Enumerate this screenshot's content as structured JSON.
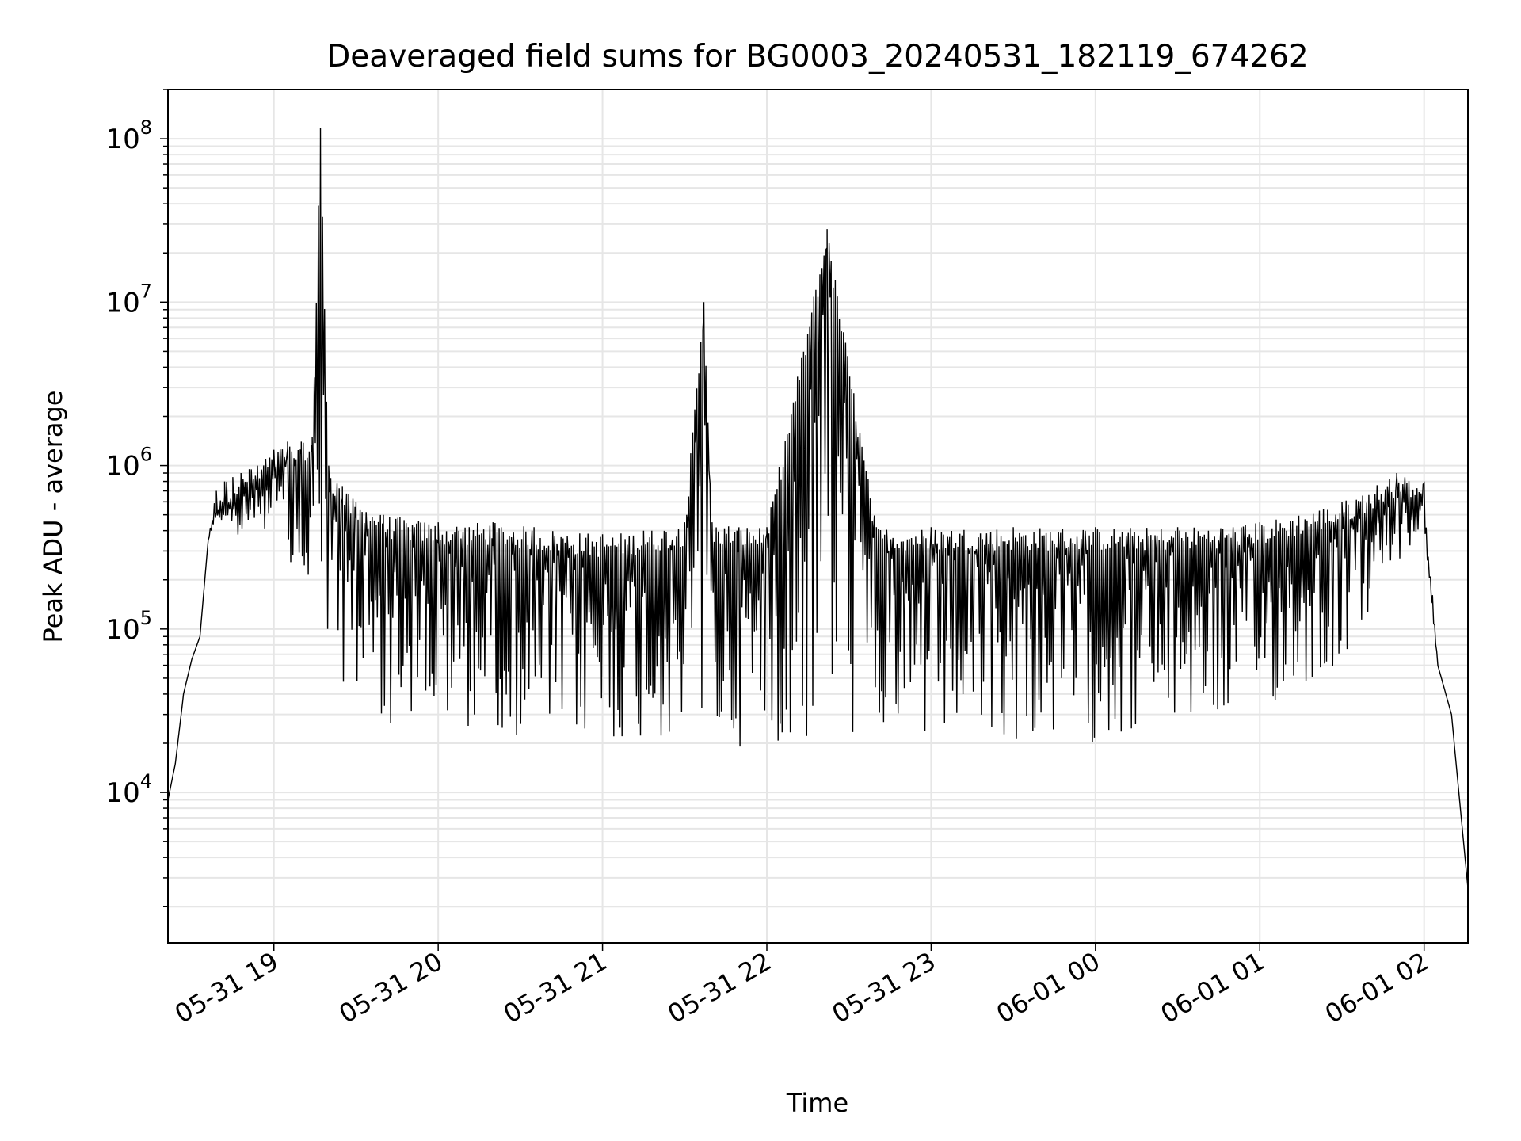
{
  "chart_data": {
    "type": "line",
    "title": "Deaveraged field sums for BG0003_20240531_182119_674262",
    "xlabel": "Time",
    "ylabel": "Peak ADU - average",
    "xscale": "time",
    "yscale": "log",
    "xlim": [
      "2024-05-31T18:21:19",
      "2024-06-01T02:16:00"
    ],
    "ylim": [
      1200,
      200000000
    ],
    "x_ticks": [
      {
        "label": "05-31 19",
        "value": "2024-05-31T19:00:00"
      },
      {
        "label": "05-31 20",
        "value": "2024-05-31T20:00:00"
      },
      {
        "label": "05-31 21",
        "value": "2024-05-31T21:00:00"
      },
      {
        "label": "05-31 22",
        "value": "2024-05-31T22:00:00"
      },
      {
        "label": "05-31 23",
        "value": "2024-05-31T23:00:00"
      },
      {
        "label": "06-01 00",
        "value": "2024-06-01T00:00:00"
      },
      {
        "label": "06-01 01",
        "value": "2024-06-01T01:00:00"
      },
      {
        "label": "06-01 02",
        "value": "2024-06-01T02:00:00"
      }
    ],
    "y_ticks": [
      {
        "base": "10",
        "exp": "4",
        "value": 10000
      },
      {
        "base": "10",
        "exp": "5",
        "value": 100000
      },
      {
        "base": "10",
        "exp": "6",
        "value": 1000000
      },
      {
        "base": "10",
        "exp": "7",
        "value": 10000000
      },
      {
        "base": "10",
        "exp": "8",
        "value": 100000000
      }
    ],
    "grid": true,
    "line_color": "#000000",
    "grid_color": "#e6e6e6",
    "series": [
      {
        "x": [
          "2024-05-31T18:21:19",
          "2024-05-31T18:24:00",
          "2024-05-31T18:27:00",
          "2024-05-31T18:30:00",
          "2024-05-31T18:33:00",
          "2024-05-31T18:36:00",
          "2024-05-31T18:39:00",
          "2024-05-31T18:42:00",
          "2024-05-31T18:45:00",
          "2024-05-31T18:48:00",
          "2024-05-31T18:51:00",
          "2024-05-31T18:54:00",
          "2024-05-31T18:57:00",
          "2024-05-31T19:00:00",
          "2024-05-31T19:05:00",
          "2024-05-31T19:10:00",
          "2024-05-31T19:14:00",
          "2024-05-31T19:17:00",
          "2024-05-31T19:20:00",
          "2024-05-31T19:25:00",
          "2024-05-31T19:30:00",
          "2024-05-31T19:40:00",
          "2024-05-31T20:00:00",
          "2024-05-31T20:20:00",
          "2024-05-31T20:35:00",
          "2024-05-31T21:00:00",
          "2024-05-31T21:15:00",
          "2024-05-31T21:30:00",
          "2024-05-31T21:37:00",
          "2024-05-31T21:40:00",
          "2024-05-31T22:00:00",
          "2024-05-31T22:22:00",
          "2024-05-31T22:40:00",
          "2024-05-31T23:00:00",
          "2024-05-31T23:30:00",
          "2024-06-01T00:00:00",
          "2024-06-01T00:30:00",
          "2024-06-01T01:00:00",
          "2024-06-01T01:30:00",
          "2024-06-01T01:50:00",
          "2024-06-01T02:00:00",
          "2024-06-01T02:05:00",
          "2024-06-01T02:10:00",
          "2024-06-01T02:16:00"
        ],
        "y": [
          9000,
          15000,
          40000,
          65000,
          90000,
          350000,
          700000,
          800000,
          850000,
          900000,
          950000,
          1000000,
          1100000,
          1250000,
          1400000,
          1400000,
          1500000,
          117000000,
          1000000,
          750000,
          600000,
          500000,
          450000,
          450000,
          420000,
          380000,
          400000,
          450000,
          10000000,
          450000,
          420000,
          28000000,
          420000,
          420000,
          420000,
          420000,
          420000,
          450000,
          600000,
          900000,
          800000,
          60000,
          30000,
          2600
        ],
        "y_low": [
          9000,
          15000,
          40000,
          65000,
          90000,
          350000,
          500000,
          400000,
          400000,
          300000,
          400000,
          500000,
          400000,
          400000,
          300000,
          150000,
          80000,
          90000,
          70000,
          40000,
          30000,
          25000,
          25000,
          25000,
          20000,
          20000,
          20000,
          20000,
          20000,
          18000,
          20000,
          20000,
          20000,
          20000,
          20000,
          20000,
          25000,
          30000,
          60000,
          250000,
          400000,
          60000,
          30000,
          2600
        ]
      }
    ]
  }
}
